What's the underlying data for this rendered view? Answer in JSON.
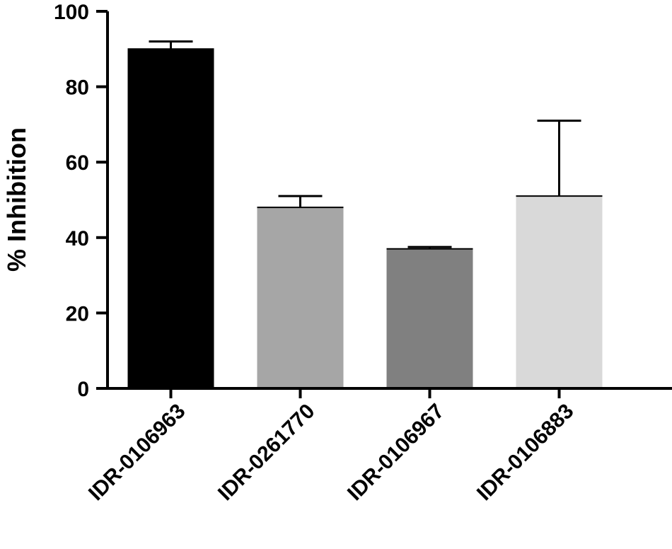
{
  "chart_data": {
    "type": "bar",
    "title": "",
    "xlabel": "",
    "ylabel": "% Inhibition",
    "ylim": [
      0,
      100
    ],
    "yticks": [
      0,
      20,
      40,
      60,
      80,
      100
    ],
    "grid": false,
    "categories": [
      "IDR-0106963",
      "IDR-0261770",
      "IDR-0106967",
      "IDR-0106883"
    ],
    "values": [
      90,
      48,
      37,
      51
    ],
    "errors": [
      2,
      3,
      0.5,
      20
    ],
    "bar_colors": [
      "#000000",
      "#a6a6a6",
      "#808080",
      "#d9d9d9"
    ]
  }
}
